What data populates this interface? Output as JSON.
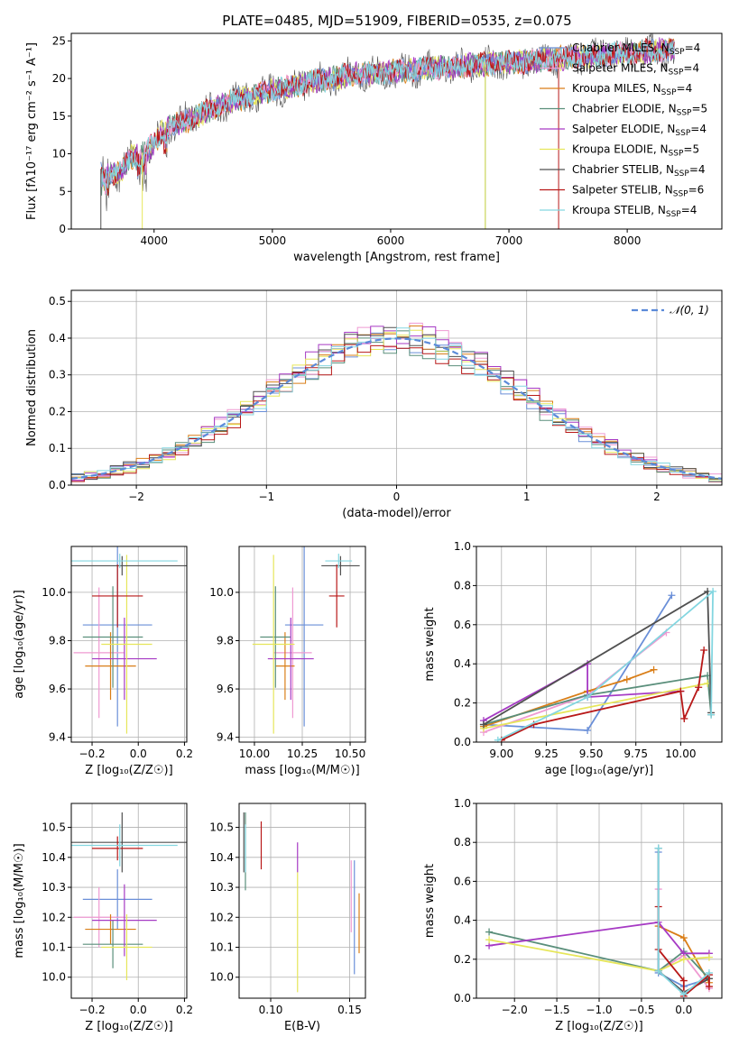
{
  "title": "PLATE=0485, MJD=51909, FIBERID=0535, z=0.075",
  "colors": [
    "#6a8fd8",
    "#ef9ad2",
    "#d97e18",
    "#5a8f7b",
    "#a63ac4",
    "#e6e65a",
    "#505050",
    "#b81818",
    "#83d6e0"
  ],
  "chart_data": [
    {
      "id": "spectrum",
      "type": "line",
      "xlabel": "wavelength [Angstrom, rest frame]",
      "ylabel": "Flux [fλ10⁻¹⁷ erg cm⁻² s⁻¹ A⁻¹]",
      "xlim": [
        3300,
        8800
      ],
      "ylim": [
        0,
        26
      ],
      "xticks": [
        4000,
        5000,
        6000,
        7000,
        8000
      ],
      "yticks": [
        0,
        5,
        10,
        15,
        20,
        25
      ],
      "grid": false,
      "legend": "top-right",
      "series": [
        {
          "name": "Chabrier MILES, N_SSP=4"
        },
        {
          "name": "Salpeter MILES, N_SSP=4"
        },
        {
          "name": "Kroupa MILES, N_SSP=4"
        },
        {
          "name": "Chabrier ELODIE, N_SSP=5"
        },
        {
          "name": "Salpeter ELODIE, N_SSP=4"
        },
        {
          "name": "Kroupa ELODIE, N_SSP=5"
        },
        {
          "name": "Chabrier STELIB, N_SSP=4"
        },
        {
          "name": "Salpeter STELIB, N_SSP=6"
        },
        {
          "name": "Kroupa STELIB, N_SSP=4"
        }
      ],
      "data_trace": {
        "x": [
          3550,
          3700,
          3800,
          3950,
          4100,
          4300,
          4500,
          4700,
          4900,
          5100,
          5300,
          5500,
          5700,
          5900,
          6100,
          6300,
          6500,
          6700,
          6900,
          7100,
          7300,
          7500,
          7700,
          7900,
          8100,
          8300
        ],
        "y": [
          8,
          7.2,
          9.5,
          10.5,
          13.5,
          14.5,
          16,
          17.2,
          18,
          18.8,
          19.5,
          20,
          20.5,
          20.8,
          21,
          21.3,
          21.5,
          21.8,
          22,
          22.2,
          22.5,
          22.8,
          23,
          23.2,
          23.5,
          23.8
        ]
      }
    },
    {
      "id": "residuals",
      "type": "area",
      "xlabel": "(data-model)/error",
      "ylabel": "Normed distribution",
      "xlim": [
        -2.5,
        2.5
      ],
      "ylim": [
        0,
        0.53
      ],
      "xticks": [
        -2,
        -1,
        0,
        1,
        2
      ],
      "yticks": [
        0.0,
        0.1,
        0.2,
        0.3,
        0.4,
        0.5
      ],
      "grid": true,
      "legend": "top-right",
      "legend_label": "𝒩(0, 1)",
      "bin_width": 0.1,
      "bin_start": -2.5,
      "hist_scales": [
        0.98,
        1.03,
        1.01,
        0.97,
        1.05,
        0.99,
        1.02,
        0.96,
        1.0
      ]
    },
    {
      "id": "z-age",
      "type": "scatter",
      "xlabel": "Z [log₁₀(Z/Z☉)]",
      "ylabel": "age  [log₁₀(age/yr)]",
      "xlim": [
        -0.29,
        0.21
      ],
      "ylim": [
        9.38,
        10.19
      ],
      "xticks": [
        -0.2,
        0.0,
        0.2
      ],
      "yticks": [
        9.4,
        9.6,
        9.8,
        10.0
      ],
      "grid": true,
      "points": [
        {
          "x": -0.09,
          "y": 9.865,
          "xerr": 0.15,
          "yerr": 0.42
        },
        {
          "x": -0.17,
          "y": 9.75,
          "xerr": 0.11,
          "yerr": 0.27
        },
        {
          "x": -0.12,
          "y": 9.695,
          "xerr": 0.11,
          "yerr": 0.14
        },
        {
          "x": -0.11,
          "y": 9.815,
          "xerr": 0.13,
          "yerr": 0.21
        },
        {
          "x": -0.06,
          "y": 9.725,
          "xerr": 0.14,
          "yerr": 0.17
        },
        {
          "x": -0.05,
          "y": 9.785,
          "xerr": 0.11,
          "yerr": 0.37
        },
        {
          "x": -0.07,
          "y": 10.11,
          "xerr": 0.28,
          "yerr": 0.04
        },
        {
          "x": -0.09,
          "y": 9.985,
          "xerr": 0.11,
          "yerr": 0.13
        },
        {
          "x": -0.08,
          "y": 10.13,
          "xerr": 0.25,
          "yerr": 0.03
        }
      ]
    },
    {
      "id": "mass-age",
      "type": "scatter",
      "xlabel": "mass [log₁₀(M/M☉)]",
      "ylabel": "",
      "xlim": [
        9.92,
        10.58
      ],
      "ylim": [
        9.38,
        10.19
      ],
      "xticks": [
        10.0,
        10.25,
        10.5
      ],
      "yticks": [
        9.4,
        9.6,
        9.8,
        10.0
      ],
      "grid": true,
      "points": [
        {
          "x": 10.26,
          "y": 9.865,
          "xerr": 0.1,
          "yerr": 0.42
        },
        {
          "x": 10.2,
          "y": 9.75,
          "xerr": 0.1,
          "yerr": 0.27
        },
        {
          "x": 10.16,
          "y": 9.695,
          "xerr": 0.05,
          "yerr": 0.14
        },
        {
          "x": 10.11,
          "y": 9.815,
          "xerr": 0.08,
          "yerr": 0.21
        },
        {
          "x": 10.19,
          "y": 9.725,
          "xerr": 0.12,
          "yerr": 0.17
        },
        {
          "x": 10.1,
          "y": 9.785,
          "xerr": 0.11,
          "yerr": 0.37
        },
        {
          "x": 10.45,
          "y": 10.11,
          "xerr": 0.1,
          "yerr": 0.04
        },
        {
          "x": 10.43,
          "y": 9.985,
          "xerr": 0.04,
          "yerr": 0.13
        },
        {
          "x": 10.44,
          "y": 10.13,
          "xerr": 0.07,
          "yerr": 0.03
        }
      ]
    },
    {
      "id": "age-weight",
      "type": "line",
      "xlabel": "age  [log₁₀(age/yr)]",
      "ylabel": "mass weight",
      "xlim": [
        8.86,
        10.23
      ],
      "ylim": [
        0,
        1.0
      ],
      "xticks": [
        9.0,
        9.25,
        9.5,
        9.75,
        10.0
      ],
      "yticks": [
        0.0,
        0.2,
        0.4,
        0.6,
        0.8,
        1.0
      ],
      "grid": true,
      "series": [
        {
          "x": [
            8.9,
            9.48,
            9.95
          ],
          "y": [
            0.09,
            0.06,
            0.75
          ]
        },
        {
          "x": [
            8.9,
            9.48,
            9.92
          ],
          "y": [
            0.05,
            0.24,
            0.56
          ]
        },
        {
          "x": [
            8.9,
            9.48,
            9.7,
            9.85
          ],
          "y": [
            0.08,
            0.26,
            0.32,
            0.37
          ]
        },
        {
          "x": [
            8.9,
            9.48,
            10.15,
            10.17
          ],
          "y": [
            0.09,
            0.24,
            0.34,
            0.14
          ]
        },
        {
          "x": [
            8.9,
            9.48,
            9.48,
            10.0
          ],
          "y": [
            0.11,
            0.4,
            0.23,
            0.26
          ]
        },
        {
          "x": [
            8.9,
            10.15
          ],
          "y": [
            0.07,
            0.3
          ]
        },
        {
          "x": [
            8.9,
            10.15,
            10.17
          ],
          "y": [
            0.09,
            0.77,
            0.15
          ]
        },
        {
          "x": [
            9.0,
            9.18,
            10.0,
            10.02,
            10.1,
            10.13
          ],
          "y": [
            0.01,
            0.09,
            0.26,
            0.12,
            0.28,
            0.47
          ]
        },
        {
          "x": [
            8.98,
            9.48,
            10.18,
            10.17
          ],
          "y": [
            0.01,
            0.23,
            0.77,
            0.14
          ]
        }
      ]
    },
    {
      "id": "z-mass",
      "type": "scatter",
      "xlabel": "Z [log₁₀(Z/Z☉)]",
      "ylabel": "mass [log₁₀(M/M☉)]",
      "xlim": [
        -0.29,
        0.21
      ],
      "ylim": [
        9.93,
        10.58
      ],
      "xticks": [
        -0.2,
        0.0,
        0.2
      ],
      "yticks": [
        10.0,
        10.1,
        10.2,
        10.3,
        10.4,
        10.5
      ],
      "grid": true,
      "points": [
        {
          "x": -0.09,
          "y": 10.26,
          "xerr": 0.15,
          "yerr": 0.1
        },
        {
          "x": -0.17,
          "y": 10.2,
          "xerr": 0.11,
          "yerr": 0.1
        },
        {
          "x": -0.12,
          "y": 10.16,
          "xerr": 0.11,
          "yerr": 0.05
        },
        {
          "x": -0.11,
          "y": 10.11,
          "xerr": 0.13,
          "yerr": 0.08
        },
        {
          "x": -0.06,
          "y": 10.19,
          "xerr": 0.14,
          "yerr": 0.12
        },
        {
          "x": -0.05,
          "y": 10.1,
          "xerr": 0.11,
          "yerr": 0.11
        },
        {
          "x": -0.07,
          "y": 10.45,
          "xerr": 0.28,
          "yerr": 0.1
        },
        {
          "x": -0.09,
          "y": 10.43,
          "xerr": 0.11,
          "yerr": 0.04
        },
        {
          "x": -0.08,
          "y": 10.44,
          "xerr": 0.25,
          "yerr": 0.07
        }
      ]
    },
    {
      "id": "ebv-mass",
      "type": "scatter",
      "xlabel": "E(B-V)",
      "ylabel": "",
      "xlim": [
        0.08,
        0.16
      ],
      "ylim": [
        9.93,
        10.58
      ],
      "xticks": [
        0.1,
        0.15
      ],
      "yticks": [
        10.0,
        10.1,
        10.2,
        10.3,
        10.4,
        10.5
      ],
      "grid": true,
      "points": [
        {
          "x": 0.153,
          "y": 10.2,
          "yerr": 0.19
        },
        {
          "x": 0.151,
          "y": 10.27,
          "yerr": 0.12
        },
        {
          "x": 0.156,
          "y": 10.18,
          "yerr": 0.1
        },
        {
          "x": 0.084,
          "y": 10.42,
          "yerr": 0.13
        },
        {
          "x": 0.117,
          "y": 10.4,
          "yerr": 0.05
        },
        {
          "x": 0.117,
          "y": 10.15,
          "yerr": 0.2
        },
        {
          "x": 0.083,
          "y": 10.45,
          "yerr": 0.1
        },
        {
          "x": 0.094,
          "y": 10.44,
          "yerr": 0.08
        },
        {
          "x": 0.084,
          "y": 10.43,
          "yerr": 0.08
        }
      ]
    },
    {
      "id": "z-weight",
      "type": "line",
      "xlabel": "Z [log₁₀(Z/Z☉)]",
      "ylabel": "mass weight",
      "xlim": [
        -2.45,
        0.45
      ],
      "ylim": [
        0,
        1.0
      ],
      "xticks": [
        -2.0,
        -1.5,
        -1.0,
        -0.5,
        0.0
      ],
      "yticks": [
        0.0,
        0.2,
        0.4,
        0.6,
        0.8,
        1.0
      ],
      "grid": true,
      "series": [
        {
          "x": [
            -0.3,
            -0.3,
            0.0,
            0.3
          ],
          "y": [
            0.75,
            0.13,
            0.06,
            0.1
          ]
        },
        {
          "x": [
            -0.3,
            -0.3,
            0.0,
            0.3
          ],
          "y": [
            0.56,
            0.14,
            0.22,
            0.05
          ]
        },
        {
          "x": [
            -0.3,
            0.0,
            0.3
          ],
          "y": [
            0.37,
            0.31,
            0.08
          ]
        },
        {
          "x": [
            -2.3,
            -0.3,
            0.0,
            0.3
          ],
          "y": [
            0.34,
            0.14,
            0.24,
            0.1
          ]
        },
        {
          "x": [
            -2.3,
            -0.3,
            0.0,
            0.3
          ],
          "y": [
            0.27,
            0.39,
            0.23,
            0.23
          ]
        },
        {
          "x": [
            -2.3,
            -0.3,
            0.0,
            0.3
          ],
          "y": [
            0.3,
            0.14,
            0.2,
            0.21
          ]
        },
        {
          "x": [
            -0.3,
            -0.3,
            0.0,
            0.3
          ],
          "y": [
            0.77,
            0.14,
            0.03,
            0.1
          ]
        },
        {
          "x": [
            -0.3,
            -0.3,
            0.0,
            0.0,
            0.3,
            0.3
          ],
          "y": [
            0.47,
            0.25,
            0.09,
            0.01,
            0.12,
            0.06
          ]
        },
        {
          "x": [
            -0.3,
            -0.3,
            0.0,
            0.3
          ],
          "y": [
            0.77,
            0.14,
            0.02,
            0.13
          ]
        }
      ]
    }
  ]
}
